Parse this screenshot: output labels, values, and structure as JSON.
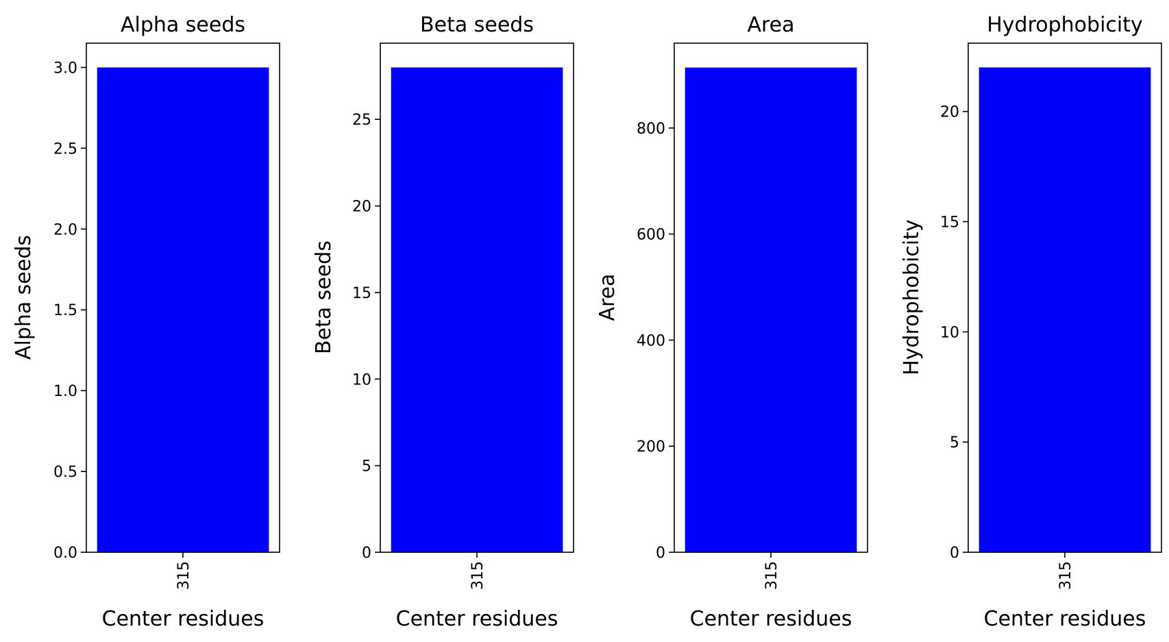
{
  "figure": {
    "background": "#ffffff",
    "bar_color": "#0000ff"
  },
  "chart_data": [
    {
      "type": "bar",
      "title": "Alpha seeds",
      "xlabel": "Center residues",
      "ylabel": "Alpha seeds",
      "categories": [
        "315"
      ],
      "values": [
        3.0
      ],
      "ylim": [
        0,
        3.15
      ],
      "yticks": [
        0.0,
        0.5,
        1.0,
        1.5,
        2.0,
        2.5,
        3.0
      ],
      "ytick_labels": [
        "0.0",
        "0.5",
        "1.0",
        "1.5",
        "2.0",
        "2.5",
        "3.0"
      ],
      "xtick_rotation": "vertical",
      "grid": false,
      "legend": "none"
    },
    {
      "type": "bar",
      "title": "Beta seeds",
      "xlabel": "Center residues",
      "ylabel": "Beta seeds",
      "categories": [
        "315"
      ],
      "values": [
        28
      ],
      "ylim": [
        0,
        29.4
      ],
      "yticks": [
        0,
        5,
        10,
        15,
        20,
        25
      ],
      "ytick_labels": [
        "0",
        "5",
        "10",
        "15",
        "20",
        "25"
      ],
      "xtick_rotation": "vertical",
      "grid": false,
      "legend": "none"
    },
    {
      "type": "bar",
      "title": "Area",
      "xlabel": "Center residues",
      "ylabel": "Area",
      "categories": [
        "315"
      ],
      "values": [
        914
      ],
      "ylim": [
        0,
        960
      ],
      "yticks": [
        0,
        200,
        400,
        600,
        800
      ],
      "ytick_labels": [
        "0",
        "200",
        "400",
        "600",
        "800"
      ],
      "xtick_rotation": "vertical",
      "grid": false,
      "legend": "none"
    },
    {
      "type": "bar",
      "title": "Hydrophobicity",
      "xlabel": "Center residues",
      "ylabel": "Hydrophobicity",
      "categories": [
        "315"
      ],
      "values": [
        22
      ],
      "ylim": [
        0,
        23.1
      ],
      "yticks": [
        0,
        5,
        10,
        15,
        20
      ],
      "ytick_labels": [
        "0",
        "5",
        "10",
        "15",
        "20"
      ],
      "xtick_rotation": "vertical",
      "grid": false,
      "legend": "none"
    }
  ]
}
